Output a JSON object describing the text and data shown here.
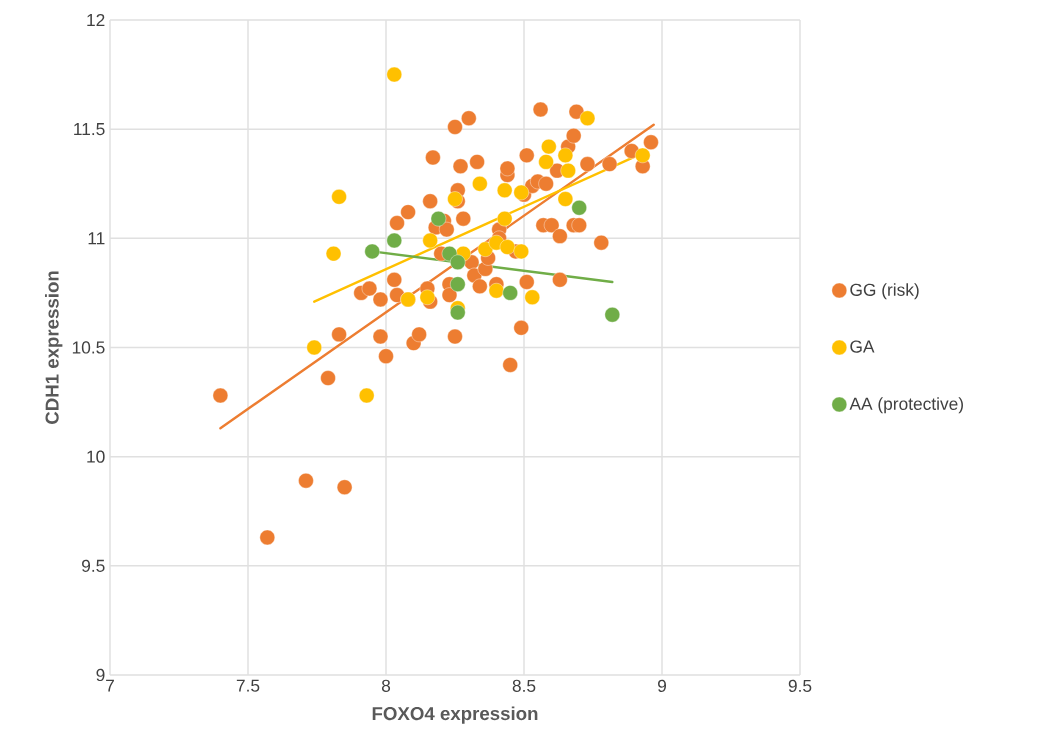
{
  "chart_data": {
    "type": "scatter",
    "xlabel": "FOXO4 expression",
    "ylabel": "CDH1 expression",
    "xlim": [
      7,
      9.5
    ],
    "ylim": [
      9,
      12
    ],
    "xticks": [
      7,
      7.5,
      8,
      8.5,
      9,
      9.5
    ],
    "yticks": [
      9,
      9.5,
      10,
      10.5,
      11,
      11.5,
      12
    ],
    "grid": true,
    "legend": "right",
    "series": [
      {
        "name": "GG (risk)",
        "color": "#ed7d31",
        "marker": "circle",
        "x": [
          7.4,
          7.57,
          7.71,
          7.85,
          7.79,
          7.83,
          7.91,
          7.94,
          7.98,
          7.98,
          8.0,
          8.03,
          8.04,
          8.04,
          8.08,
          8.08,
          8.1,
          8.12,
          8.15,
          8.16,
          8.16,
          8.17,
          8.18,
          8.2,
          8.21,
          8.22,
          8.23,
          8.23,
          8.25,
          8.26,
          8.26,
          8.25,
          8.27,
          8.28,
          8.3,
          8.31,
          8.32,
          8.33,
          8.34,
          8.36,
          8.37,
          8.41,
          8.41,
          8.4,
          8.44,
          8.44,
          8.45,
          8.47,
          8.49,
          8.5,
          8.51,
          8.51,
          8.53,
          8.55,
          8.56,
          8.57,
          8.58,
          8.6,
          8.62,
          8.63,
          8.63,
          8.66,
          8.68,
          8.69,
          8.68,
          8.7,
          8.73,
          8.78,
          8.81,
          8.89,
          8.93,
          8.96
        ],
        "values": [
          10.28,
          9.63,
          9.89,
          9.86,
          10.36,
          10.56,
          10.75,
          10.77,
          10.55,
          10.72,
          10.46,
          10.81,
          11.07,
          10.74,
          11.12,
          10.72,
          10.52,
          10.56,
          10.77,
          10.71,
          11.17,
          11.37,
          11.05,
          10.93,
          11.08,
          11.04,
          10.79,
          10.74,
          11.51,
          11.17,
          11.22,
          10.55,
          11.33,
          11.09,
          11.55,
          10.89,
          10.83,
          11.35,
          10.78,
          10.86,
          10.91,
          11.04,
          11.0,
          10.79,
          11.29,
          11.32,
          10.42,
          10.94,
          10.59,
          11.2,
          11.38,
          10.8,
          11.24,
          11.26,
          11.59,
          11.06,
          11.25,
          11.06,
          11.31,
          11.01,
          10.81,
          11.42,
          11.47,
          11.58,
          11.06,
          11.06,
          11.34,
          10.98,
          11.34,
          11.4,
          11.33,
          11.44
        ]
      },
      {
        "name": "GA",
        "color": "#ffc000",
        "marker": "circle",
        "x": [
          8.03,
          7.83,
          7.81,
          7.74,
          7.93,
          8.08,
          8.15,
          8.16,
          8.25,
          8.26,
          8.28,
          8.34,
          8.36,
          8.4,
          8.4,
          8.43,
          8.43,
          8.44,
          8.49,
          8.49,
          8.53,
          8.58,
          8.59,
          8.65,
          8.65,
          8.66,
          8.73,
          8.93
        ],
        "values": [
          11.75,
          11.19,
          10.93,
          10.5,
          10.28,
          10.72,
          10.73,
          10.99,
          11.18,
          10.68,
          10.93,
          11.25,
          10.95,
          10.98,
          10.76,
          11.22,
          11.09,
          10.96,
          11.21,
          10.94,
          10.73,
          11.35,
          11.42,
          11.38,
          11.18,
          11.31,
          11.55,
          11.38
        ]
      },
      {
        "name": "AA (protective)",
        "color": "#70ad47",
        "marker": "circle",
        "x": [
          7.95,
          8.03,
          8.19,
          8.23,
          8.26,
          8.26,
          8.26,
          8.45,
          8.7,
          8.82
        ],
        "values": [
          10.94,
          10.99,
          11.09,
          10.93,
          10.89,
          10.79,
          10.66,
          10.75,
          11.14,
          10.65
        ]
      },
      {
        "type": "line",
        "color": "#ed7d31",
        "line_style": "solid",
        "marker": "none",
        "x": [
          7.4,
          8.97
        ],
        "values": [
          10.13,
          11.52
        ]
      },
      {
        "type": "line",
        "color": "#ffc000",
        "line_style": "solid",
        "marker": "none",
        "x": [
          7.74,
          8.93
        ],
        "values": [
          10.71,
          11.39
        ]
      },
      {
        "type": "line",
        "color": "#70ad47",
        "line_style": "solid",
        "marker": "none",
        "x": [
          7.95,
          8.82
        ],
        "values": [
          10.94,
          10.8
        ]
      }
    ]
  }
}
